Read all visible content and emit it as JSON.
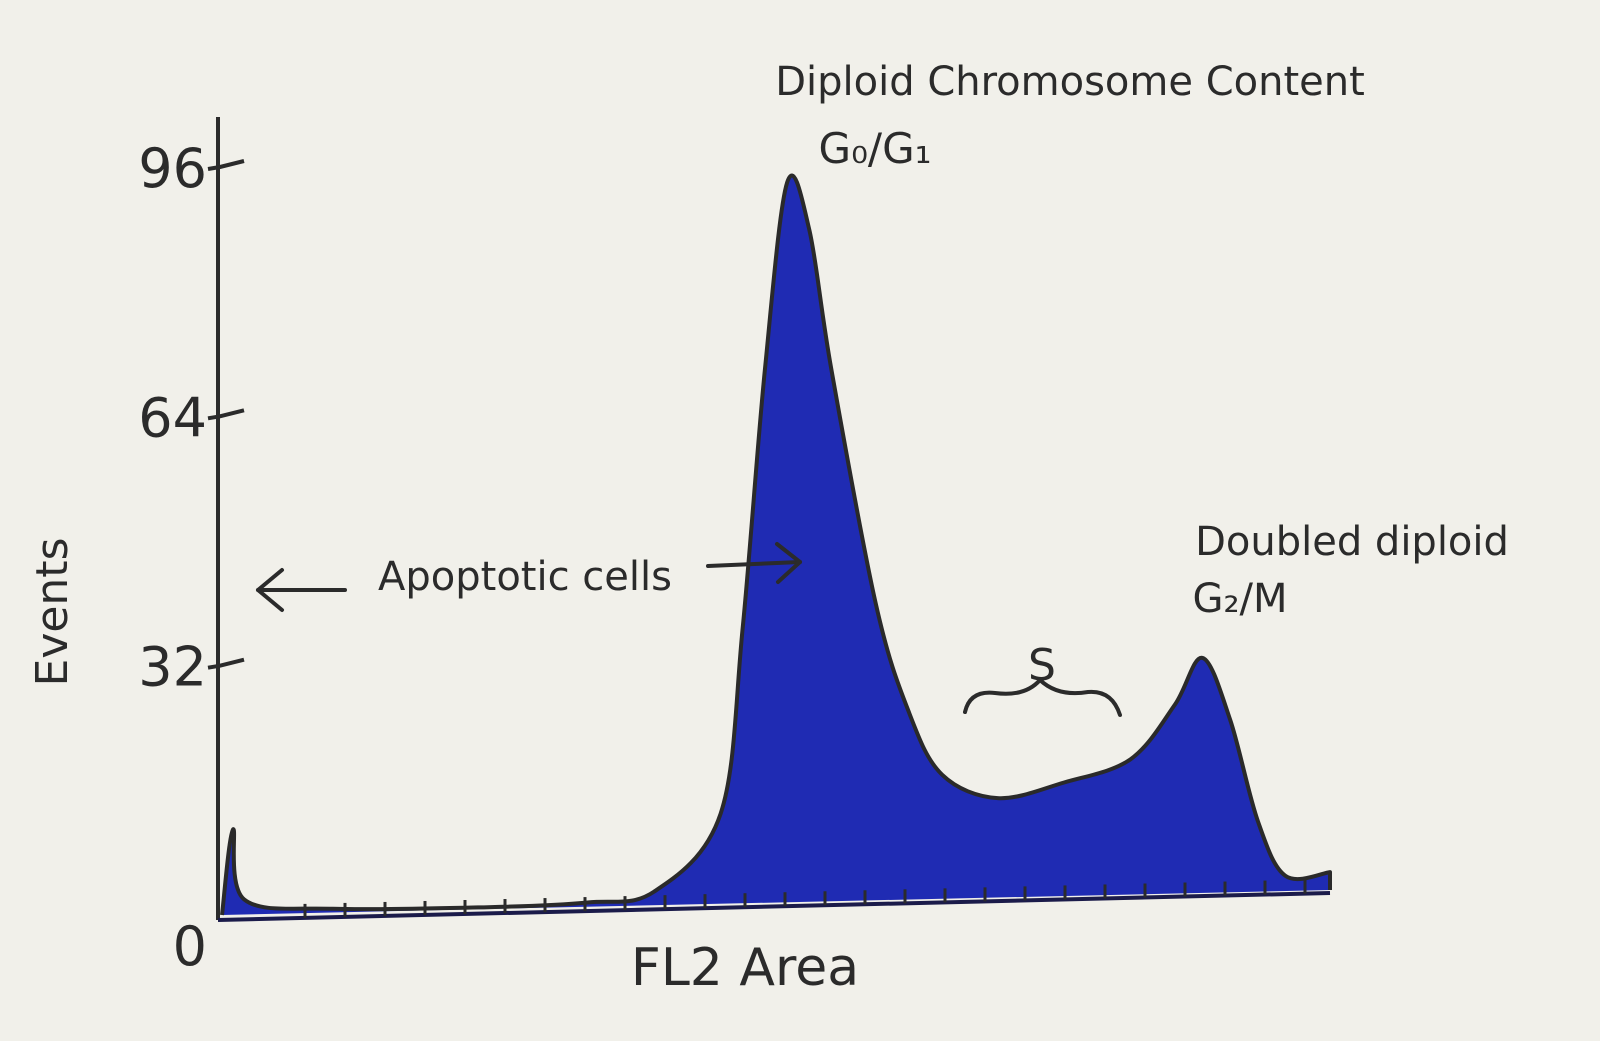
{
  "chart_data": {
    "type": "area",
    "xlabel": "FL2 Area",
    "ylabel": "Events",
    "ylim": [
      0,
      96
    ],
    "yticks": [
      "0",
      "32",
      "64",
      "96"
    ],
    "grid": false,
    "fill_color": "#1f2bb3",
    "outline_color": "#2a2a2a",
    "series": [
      {
        "points": [
          [
            0,
            0
          ],
          [
            10,
            11
          ],
          [
            20,
            2
          ],
          [
            100,
            0.8
          ],
          [
            240,
            1
          ],
          [
            330,
            1.6
          ],
          [
            390,
            3
          ],
          [
            450,
            13
          ],
          [
            470,
            37
          ],
          [
            490,
            70
          ],
          [
            510,
            94
          ],
          [
            530,
            88
          ],
          [
            550,
            70
          ],
          [
            590,
            40
          ],
          [
            620,
            26
          ],
          [
            650,
            18
          ],
          [
            700,
            15
          ],
          [
            760,
            17
          ],
          [
            820,
            20
          ],
          [
            860,
            27
          ],
          [
            885,
            33
          ],
          [
            910,
            25
          ],
          [
            935,
            12
          ],
          [
            960,
            5
          ],
          [
            1000,
            5.5
          ]
        ]
      }
    ],
    "annotations": [
      {
        "text": "Diploid Chromosome Content",
        "x": 510,
        "y": 96
      },
      {
        "text": "G₀/G₁",
        "x": 510,
        "y": 94
      },
      {
        "text": "Doubled diploid",
        "x": 885,
        "y": 39
      },
      {
        "text": "G₂/M",
        "x": 885,
        "y": 36
      },
      {
        "text": "S",
        "x": 760,
        "y": 26
      },
      {
        "text": "Apoptotic cells",
        "x": 230,
        "y": 38
      }
    ]
  }
}
